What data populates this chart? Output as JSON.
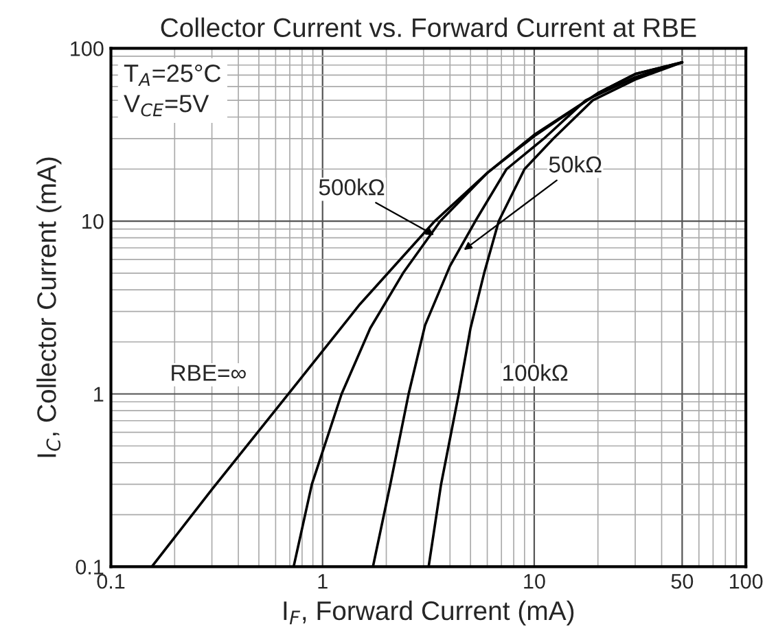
{
  "chart_data": {
    "type": "line",
    "title": "Collector Current vs. Forward Current at RBE",
    "xlabel": "I$_{F}$, Forward Current (mA)",
    "ylabel": "I$_{C}$, Collector Current (mA)",
    "log": "xy",
    "xlim": [
      0.1,
      100
    ],
    "ylim": [
      0.1,
      100
    ],
    "xticks": [
      0.1,
      1,
      10,
      50,
      100
    ],
    "yticks": [
      0.1,
      1,
      10,
      100
    ],
    "grid": true,
    "legend": false,
    "series": [
      {
        "color": "#000000",
        "x": [
          0.156,
          0.3,
          0.69,
          1.5,
          3.39,
          6,
          10,
          20,
          30,
          50
        ],
        "values": [
          0.1,
          0.28,
          1,
          3.3,
          10,
          19,
          31.6,
          55,
          71,
          83
        ]
      },
      {
        "color": "#000000",
        "x": [
          0.73,
          0.89,
          1.23,
          1.68,
          2.4,
          3.6,
          6,
          10,
          20,
          30,
          50
        ],
        "values": [
          0.1,
          0.3,
          1,
          2.4,
          5,
          10,
          19,
          31,
          55,
          71,
          83
        ]
      },
      {
        "color": "#000000",
        "x": [
          1.73,
          2.09,
          2.55,
          3.05,
          4,
          5.27,
          7.4,
          11.1,
          17.5,
          30,
          50
        ],
        "values": [
          0.1,
          0.3,
          1,
          2.5,
          5.5,
          10,
          20,
          30,
          50,
          68,
          83
        ]
      },
      {
        "color": "#000000",
        "x": [
          3.17,
          3.63,
          4.4,
          5,
          5.8,
          6.8,
          9,
          12.3,
          18.9,
          30,
          50
        ],
        "values": [
          0.1,
          0.3,
          1,
          2.4,
          5,
          10,
          20,
          30,
          50,
          66,
          83
        ]
      }
    ],
    "annotations": [
      "T$_{A}$=25°C\nV$_{CE}$=5V",
      {
        "text": "500kΩ",
        "x": 3.49,
        "y": 8.1
      },
      {
        "text": "50kΩ",
        "x": 4.5,
        "y": 6.6
      },
      {
        "text": "RBE=∞",
        "x": 0.69,
        "y": 1
      },
      {
        "text": "100kΩ",
        "x": 4.4,
        "y": 1
      }
    ]
  }
}
